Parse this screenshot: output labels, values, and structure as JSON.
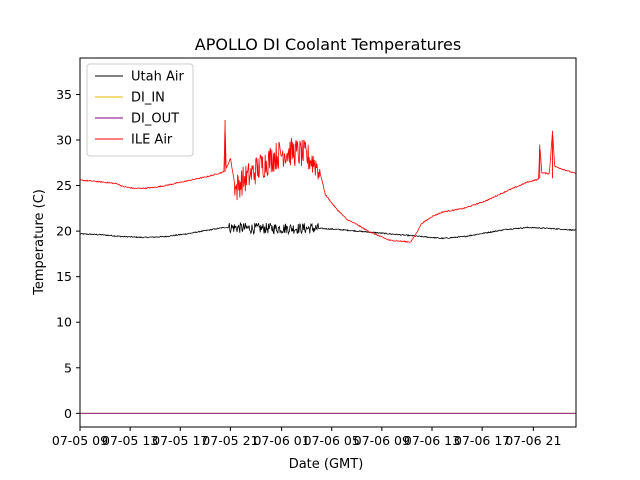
{
  "chart_data": {
    "type": "line",
    "title": "APOLLO DI Coolant Temperatures",
    "xlabel": "Date (GMT)",
    "ylabel": "Temperature (C)",
    "ylim": [
      -1.5,
      39
    ],
    "xlim": [
      0,
      46.5
    ],
    "yticks": [
      0,
      5,
      10,
      15,
      20,
      25,
      30,
      35
    ],
    "xticks": [
      {
        "x": 0,
        "label": "07-05 09"
      },
      {
        "x": 4.7,
        "label": "07-05 13"
      },
      {
        "x": 9.4,
        "label": "07-05 17"
      },
      {
        "x": 14.1,
        "label": "07-05 21"
      },
      {
        "x": 18.9,
        "label": "07-06 01"
      },
      {
        "x": 23.6,
        "label": "07-06 05"
      },
      {
        "x": 28.3,
        "label": "07-06 09"
      },
      {
        "x": 33.0,
        "label": "07-06 13"
      },
      {
        "x": 37.7,
        "label": "07-06 17"
      },
      {
        "x": 42.5,
        "label": "07-06 21"
      }
    ],
    "legend_position": "top-left",
    "series": [
      {
        "name": "Utah Air",
        "color": "#000000",
        "x": [
          0,
          2,
          4,
          6,
          8,
          10,
          12,
          13.5,
          14.1,
          16,
          18,
          20,
          22,
          22.5,
          24,
          26,
          28,
          30,
          32,
          34,
          36,
          38,
          40,
          42,
          44,
          46.5
        ],
        "y": [
          19.7,
          19.6,
          19.4,
          19.3,
          19.4,
          19.7,
          20.1,
          20.4,
          20.4,
          20.3,
          20.3,
          20.3,
          20.3,
          20.3,
          20.2,
          20.0,
          19.8,
          19.6,
          19.4,
          19.2,
          19.4,
          19.8,
          20.2,
          20.4,
          20.3,
          20.1
        ],
        "noise_range": [
          13.9,
          22.4
        ],
        "noise_amp": 0.6
      },
      {
        "name": "DI_IN",
        "color": "#e8b800",
        "x": [
          0,
          46.5
        ],
        "y": [
          0,
          0
        ]
      },
      {
        "name": "DI_OUT",
        "color": "#800080",
        "x": [
          0,
          46.5
        ],
        "y": [
          0,
          0
        ]
      },
      {
        "name": "ILE Air",
        "color": "#ff0000",
        "x": [
          0,
          2,
          3.5,
          4,
          5,
          6,
          7,
          8,
          10,
          12,
          13.5,
          13.6,
          13.7,
          14.1,
          14.6,
          15,
          16,
          17,
          18,
          19,
          20,
          21,
          22,
          22.3,
          22.6,
          23,
          24,
          25,
          26,
          27,
          28,
          29,
          30,
          31,
          31.5,
          32,
          33,
          34,
          36,
          38,
          40,
          42,
          43,
          43.1,
          43.3,
          44,
          44.3,
          44.5,
          45,
          46.5
        ],
        "y": [
          25.6,
          25.4,
          25.2,
          24.9,
          24.7,
          24.7,
          24.8,
          25.0,
          25.5,
          26.0,
          26.5,
          32.2,
          26.8,
          28.0,
          24.5,
          25.3,
          26.2,
          27.2,
          28.0,
          28.6,
          28.7,
          28.4,
          27.5,
          27.0,
          26.0,
          24.0,
          22.5,
          21.3,
          20.7,
          20.0,
          19.5,
          19.0,
          18.9,
          18.8,
          19.7,
          20.8,
          21.6,
          22.1,
          22.5,
          23.3,
          24.4,
          25.4,
          25.7,
          29.5,
          26.4,
          26.3,
          31.0,
          27.1,
          26.9,
          26.3
        ],
        "noise_range": [
          14.5,
          22.5
        ],
        "noise_amp": 1.6
      }
    ]
  }
}
